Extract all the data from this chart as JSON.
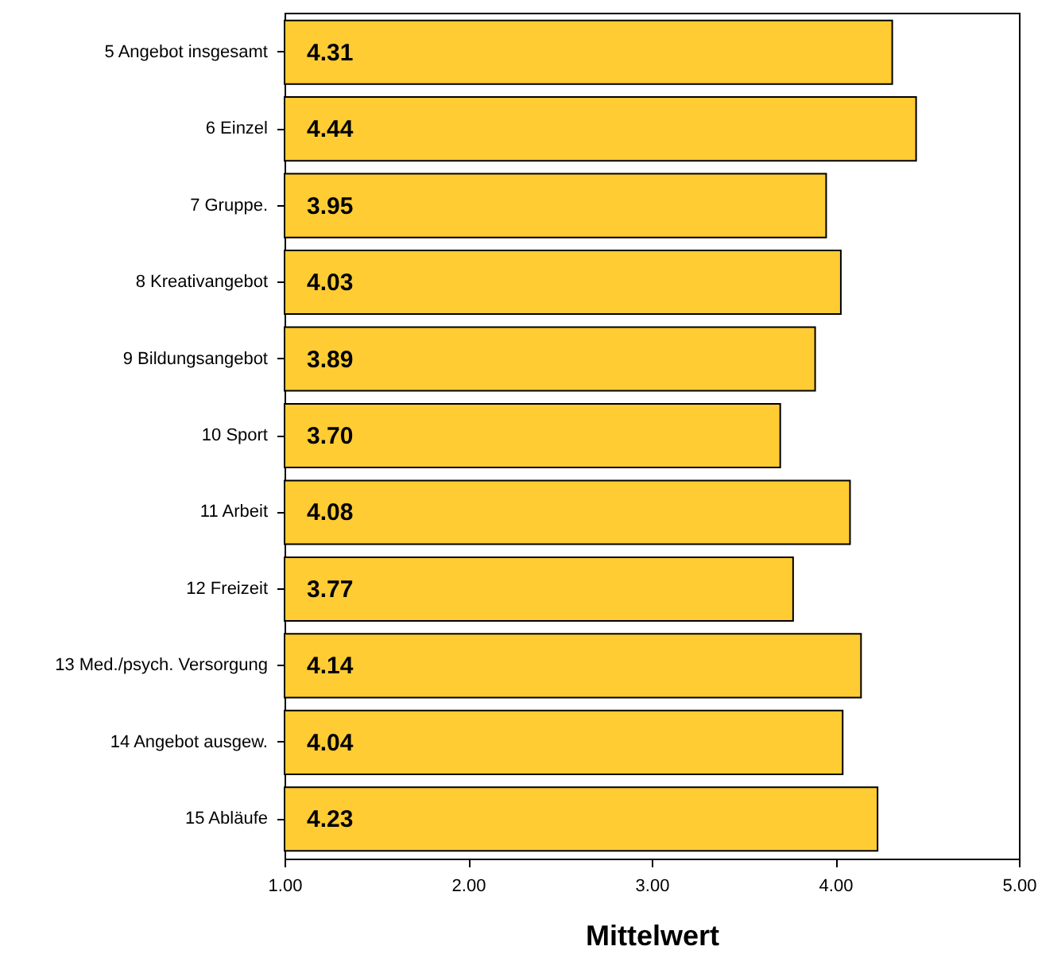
{
  "chart_data": {
    "type": "bar",
    "orientation": "horizontal",
    "xlabel": "Mittelwert",
    "categories": [
      "5 Angebot insgesamt",
      "6 Einzel",
      "7 Gruppe.",
      "8 Kreativangebot",
      "9 Bildungsangebot",
      "10 Sport",
      "11 Arbeit",
      "12 Freizeit",
      "13 Med./psych. Versorgung",
      "14 Angebot ausgew.",
      "15 Abläufe"
    ],
    "values": [
      4.31,
      4.44,
      3.95,
      4.03,
      3.89,
      3.7,
      4.08,
      3.77,
      4.14,
      4.04,
      4.23
    ],
    "value_labels": [
      "4.31",
      "4.44",
      "3.95",
      "4.03",
      "3.89",
      "3.70",
      "4.08",
      "3.77",
      "4.14",
      "4.04",
      "4.23"
    ],
    "color": "#ffcc33",
    "xlim": [
      1,
      5
    ],
    "xticks": [
      {
        "value": 1,
        "label": "1.00"
      },
      {
        "value": 2,
        "label": "2.00"
      },
      {
        "value": 3,
        "label": "3.00"
      },
      {
        "value": 4,
        "label": "4.00"
      },
      {
        "value": 5,
        "label": "5.00"
      }
    ],
    "grid": false
  }
}
